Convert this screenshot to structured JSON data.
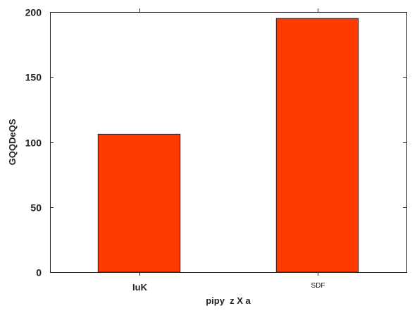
{
  "chart_data": {
    "type": "bar",
    "categories": [
      "IuK",
      "SDF"
    ],
    "values": [
      106,
      195
    ],
    "xlabel": "pipy  z X a",
    "ylabel": "GQQDeQS",
    "ylim": [
      0,
      200
    ],
    "yticks": [
      0,
      50,
      100,
      150,
      200
    ],
    "grid": false,
    "bar_color": "#ff3a00",
    "edge_color": "#222222"
  }
}
